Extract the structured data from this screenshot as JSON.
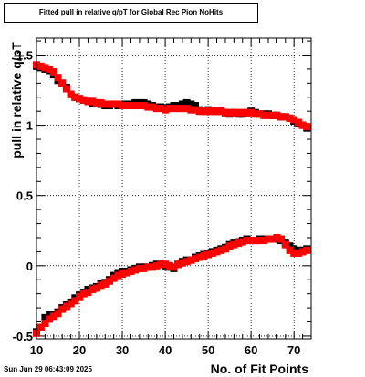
{
  "chart_data": {
    "type": "scatter",
    "title": "Fitted pull in relative q/pT for Global Rec Pion NoHits",
    "xlabel": "No. of Fit Points",
    "ylabel": "pull in relative q/pT",
    "xlim": [
      10,
      74
    ],
    "ylim": [
      -0.52,
      1.62
    ],
    "x_ticks": [
      10,
      20,
      30,
      40,
      50,
      60,
      70
    ],
    "y_ticks": [
      -0.5,
      0,
      0.5,
      1,
      1.5
    ],
    "grid": true,
    "series": [
      {
        "marker": "square",
        "color": "#000000",
        "points": [
          [
            10,
            1.42
          ],
          [
            11,
            1.41
          ],
          [
            12,
            1.4
          ],
          [
            13,
            1.39
          ],
          [
            14,
            1.36
          ],
          [
            15,
            1.32
          ],
          [
            16,
            1.3
          ],
          [
            17,
            1.27
          ],
          [
            18,
            1.22
          ],
          [
            19,
            1.2
          ],
          [
            20,
            1.19
          ],
          [
            21,
            1.18
          ],
          [
            22,
            1.17
          ],
          [
            23,
            1.16
          ],
          [
            24,
            1.16
          ],
          [
            25,
            1.15
          ],
          [
            26,
            1.14
          ],
          [
            27,
            1.14
          ],
          [
            28,
            1.15
          ],
          [
            29,
            1.14
          ],
          [
            30,
            1.15
          ],
          [
            31,
            1.15
          ],
          [
            32,
            1.15
          ],
          [
            33,
            1.16
          ],
          [
            34,
            1.16
          ],
          [
            35,
            1.16
          ],
          [
            36,
            1.15
          ],
          [
            37,
            1.14
          ],
          [
            38,
            1.13
          ],
          [
            39,
            1.13
          ],
          [
            40,
            1.12
          ],
          [
            41,
            1.13
          ],
          [
            42,
            1.14
          ],
          [
            43,
            1.14
          ],
          [
            44,
            1.15
          ],
          [
            45,
            1.16
          ],
          [
            46,
            1.15
          ],
          [
            47,
            1.14
          ],
          [
            48,
            1.11
          ],
          [
            49,
            1.1
          ],
          [
            50,
            1.11
          ],
          [
            51,
            1.1
          ],
          [
            52,
            1.1
          ],
          [
            53,
            1.1
          ],
          [
            54,
            1.09
          ],
          [
            55,
            1.08
          ],
          [
            56,
            1.09
          ],
          [
            57,
            1.08
          ],
          [
            58,
            1.08
          ],
          [
            59,
            1.09
          ],
          [
            60,
            1.1
          ],
          [
            61,
            1.09
          ],
          [
            62,
            1.08
          ],
          [
            63,
            1.08
          ],
          [
            64,
            1.08
          ],
          [
            65,
            1.07
          ],
          [
            66,
            1.07
          ],
          [
            67,
            1.06
          ],
          [
            68,
            1.06
          ],
          [
            69,
            1.05
          ],
          [
            70,
            1.03
          ],
          [
            71,
            1.01
          ],
          [
            72,
            1.0
          ],
          [
            73,
            0.98
          ]
        ]
      },
      {
        "marker": "square",
        "color": "#ff0000",
        "points": [
          [
            10,
            1.43
          ],
          [
            11,
            1.42
          ],
          [
            12,
            1.41
          ],
          [
            13,
            1.4
          ],
          [
            14,
            1.38
          ],
          [
            15,
            1.34
          ],
          [
            16,
            1.3
          ],
          [
            17,
            1.26
          ],
          [
            18,
            1.22
          ],
          [
            19,
            1.2
          ],
          [
            20,
            1.19
          ],
          [
            21,
            1.18
          ],
          [
            22,
            1.17
          ],
          [
            23,
            1.17
          ],
          [
            24,
            1.16
          ],
          [
            25,
            1.16
          ],
          [
            26,
            1.15
          ],
          [
            27,
            1.15
          ],
          [
            28,
            1.15
          ],
          [
            29,
            1.15
          ],
          [
            30,
            1.14
          ],
          [
            31,
            1.14
          ],
          [
            32,
            1.14
          ],
          [
            33,
            1.14
          ],
          [
            34,
            1.14
          ],
          [
            35,
            1.14
          ],
          [
            36,
            1.13
          ],
          [
            37,
            1.13
          ],
          [
            38,
            1.12
          ],
          [
            39,
            1.12
          ],
          [
            40,
            1.11
          ],
          [
            41,
            1.12
          ],
          [
            42,
            1.12
          ],
          [
            43,
            1.12
          ],
          [
            44,
            1.12
          ],
          [
            45,
            1.12
          ],
          [
            46,
            1.11
          ],
          [
            47,
            1.11
          ],
          [
            48,
            1.1
          ],
          [
            49,
            1.1
          ],
          [
            50,
            1.1
          ],
          [
            51,
            1.1
          ],
          [
            52,
            1.1
          ],
          [
            53,
            1.1
          ],
          [
            54,
            1.09
          ],
          [
            55,
            1.09
          ],
          [
            56,
            1.09
          ],
          [
            57,
            1.09
          ],
          [
            58,
            1.09
          ],
          [
            59,
            1.09
          ],
          [
            60,
            1.09
          ],
          [
            61,
            1.08
          ],
          [
            62,
            1.08
          ],
          [
            63,
            1.07
          ],
          [
            64,
            1.07
          ],
          [
            65,
            1.07
          ],
          [
            66,
            1.07
          ],
          [
            67,
            1.06
          ],
          [
            68,
            1.06
          ],
          [
            69,
            1.05
          ],
          [
            70,
            1.04
          ],
          [
            71,
            1.02
          ],
          [
            72,
            1.0
          ],
          [
            73,
            0.99
          ]
        ]
      },
      {
        "marker": "square",
        "color": "#000000",
        "points": [
          [
            10,
            -0.47
          ],
          [
            11,
            -0.44
          ],
          [
            12,
            -0.37
          ],
          [
            13,
            -0.35
          ],
          [
            14,
            -0.35
          ],
          [
            15,
            -0.33
          ],
          [
            16,
            -0.3
          ],
          [
            17,
            -0.28
          ],
          [
            18,
            -0.26
          ],
          [
            19,
            -0.23
          ],
          [
            20,
            -0.21
          ],
          [
            21,
            -0.19
          ],
          [
            22,
            -0.17
          ],
          [
            23,
            -0.16
          ],
          [
            24,
            -0.15
          ],
          [
            25,
            -0.13
          ],
          [
            26,
            -0.12
          ],
          [
            27,
            -0.1
          ],
          [
            28,
            -0.07
          ],
          [
            29,
            -0.05
          ],
          [
            30,
            -0.04
          ],
          [
            31,
            -0.04
          ],
          [
            32,
            -0.03
          ],
          [
            33,
            -0.02
          ],
          [
            34,
            -0.01
          ],
          [
            35,
            -0.01
          ],
          [
            36,
            -0.01
          ],
          [
            37,
            0.0
          ],
          [
            38,
            0.01
          ],
          [
            39,
            0.01
          ],
          [
            40,
            0.0
          ],
          [
            41,
            -0.01
          ],
          [
            42,
            -0.02
          ],
          [
            43,
            0.01
          ],
          [
            44,
            0.03
          ],
          [
            45,
            0.04
          ],
          [
            46,
            0.04
          ],
          [
            47,
            0.06
          ],
          [
            48,
            0.07
          ],
          [
            49,
            0.08
          ],
          [
            50,
            0.09
          ],
          [
            51,
            0.1
          ],
          [
            52,
            0.11
          ],
          [
            53,
            0.12
          ],
          [
            54,
            0.13
          ],
          [
            55,
            0.15
          ],
          [
            56,
            0.16
          ],
          [
            57,
            0.17
          ],
          [
            58,
            0.18
          ],
          [
            59,
            0.19
          ],
          [
            60,
            0.18
          ],
          [
            61,
            0.18
          ],
          [
            62,
            0.19
          ],
          [
            63,
            0.19
          ],
          [
            64,
            0.19
          ],
          [
            65,
            0.19
          ],
          [
            66,
            0.19
          ],
          [
            67,
            0.18
          ],
          [
            68,
            0.16
          ],
          [
            69,
            0.14
          ],
          [
            70,
            0.12
          ],
          [
            71,
            0.11
          ],
          [
            72,
            0.11
          ],
          [
            73,
            0.12
          ]
        ]
      },
      {
        "marker": "square",
        "color": "#ff0000",
        "points": [
          [
            10,
            -0.48
          ],
          [
            11,
            -0.44
          ],
          [
            12,
            -0.41
          ],
          [
            13,
            -0.38
          ],
          [
            14,
            -0.36
          ],
          [
            15,
            -0.34
          ],
          [
            16,
            -0.31
          ],
          [
            17,
            -0.29
          ],
          [
            18,
            -0.27
          ],
          [
            19,
            -0.25
          ],
          [
            20,
            -0.22
          ],
          [
            21,
            -0.2
          ],
          [
            22,
            -0.19
          ],
          [
            23,
            -0.17
          ],
          [
            24,
            -0.16
          ],
          [
            25,
            -0.14
          ],
          [
            26,
            -0.13
          ],
          [
            27,
            -0.11
          ],
          [
            28,
            -0.09
          ],
          [
            29,
            -0.07
          ],
          [
            30,
            -0.06
          ],
          [
            31,
            -0.05
          ],
          [
            32,
            -0.04
          ],
          [
            33,
            -0.03
          ],
          [
            34,
            -0.02
          ],
          [
            35,
            -0.02
          ],
          [
            36,
            -0.01
          ],
          [
            37,
            -0.01
          ],
          [
            38,
            0.0
          ],
          [
            39,
            0.01
          ],
          [
            40,
            0.01
          ],
          [
            41,
            0.0
          ],
          [
            42,
            -0.01
          ],
          [
            43,
            0.01
          ],
          [
            44,
            0.02
          ],
          [
            45,
            0.03
          ],
          [
            46,
            0.04
          ],
          [
            47,
            0.05
          ],
          [
            48,
            0.06
          ],
          [
            49,
            0.07
          ],
          [
            50,
            0.08
          ],
          [
            51,
            0.09
          ],
          [
            52,
            0.1
          ],
          [
            53,
            0.11
          ],
          [
            54,
            0.12
          ],
          [
            55,
            0.14
          ],
          [
            56,
            0.15
          ],
          [
            57,
            0.16
          ],
          [
            58,
            0.17
          ],
          [
            59,
            0.18
          ],
          [
            60,
            0.18
          ],
          [
            61,
            0.18
          ],
          [
            62,
            0.18
          ],
          [
            63,
            0.18
          ],
          [
            64,
            0.19
          ],
          [
            65,
            0.19
          ],
          [
            66,
            0.2
          ],
          [
            67,
            0.19
          ],
          [
            68,
            0.15
          ],
          [
            69,
            0.11
          ],
          [
            70,
            0.09
          ],
          [
            71,
            0.09
          ],
          [
            72,
            0.1
          ],
          [
            73,
            0.11
          ]
        ]
      }
    ]
  },
  "footer": {
    "timestamp": "Sun Jun 29 06:43:09 2025"
  }
}
